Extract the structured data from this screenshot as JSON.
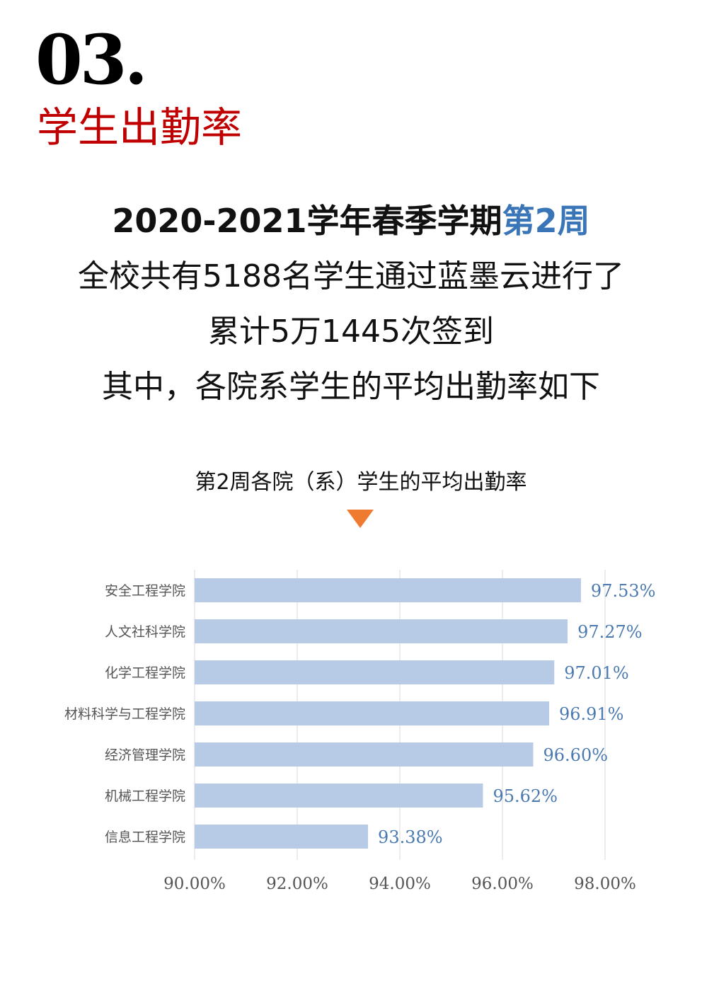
{
  "section": {
    "number": "03.",
    "title": "学生出勤率"
  },
  "intro": {
    "heading_main": "2020-2021学年春季学期",
    "heading_accent": "第2周",
    "line1": "全校共有5188名学生通过蓝墨云进行了",
    "line2": "累计5万1445次签到",
    "line3": "其中，各院系学生的平均出勤率如下"
  },
  "colors": {
    "title_red": "#c00000",
    "accent_blue": "#3a75b8",
    "bar": "#b7cbe6",
    "marker": "#ee7b30"
  },
  "chart_data": {
    "type": "bar",
    "orientation": "horizontal",
    "title": "第2周各院（系）学生的平均出勤率",
    "categories": [
      "安全工程学院",
      "人文社科学院",
      "化学工程学院",
      "材料科学与工程学院",
      "经济管理学院",
      "机械工程学院",
      "信息工程学院"
    ],
    "values": [
      97.53,
      97.27,
      97.01,
      96.91,
      96.6,
      95.62,
      93.38
    ],
    "value_labels": [
      "97.53%",
      "97.27%",
      "97.01%",
      "96.91%",
      "96.60%",
      "95.62%",
      "93.38%"
    ],
    "xlim": [
      90,
      98
    ],
    "x_ticks": [
      90,
      92,
      94,
      96,
      98
    ],
    "x_tick_labels": [
      "90.00%",
      "92.00%",
      "94.00%",
      "96.00%",
      "98.00%"
    ],
    "grid": "vertical",
    "legend": "none"
  }
}
